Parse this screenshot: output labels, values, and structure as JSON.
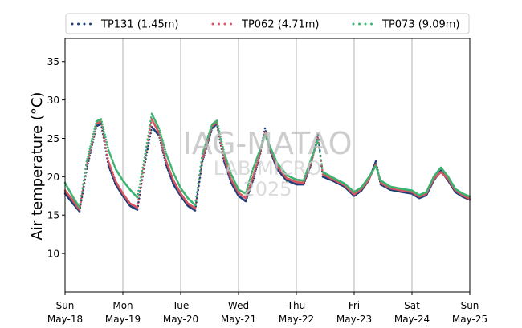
{
  "chart_data": {
    "type": "line",
    "ylabel": "Air temperature (°C)",
    "ylim": [
      5,
      38
    ],
    "yticks": [
      10,
      15,
      20,
      25,
      30,
      35
    ],
    "xlim": [
      "2025-05-18",
      "2025-05-25"
    ],
    "xticks": [
      {
        "day": "Sun",
        "date": "May-18"
      },
      {
        "day": "Mon",
        "date": "May-19"
      },
      {
        "day": "Tue",
        "date": "May-20"
      },
      {
        "day": "Wed",
        "date": "May-21"
      },
      {
        "day": "Thu",
        "date": "May-22"
      },
      {
        "day": "Fri",
        "date": "May-23"
      },
      {
        "day": "Sat",
        "date": "May-24"
      },
      {
        "day": "Sun",
        "date": "May-25"
      }
    ],
    "grid": "vertical at day boundaries",
    "legend_position": "top, above plot",
    "watermark": [
      "IAG-MATAO",
      "LAB MICRO",
      "2025"
    ],
    "series": [
      {
        "name": "TP131 (1.45m)",
        "color": "#1f3f7a",
        "style": "dotted",
        "points": [
          [
            "2025-05-18 00:00",
            17.8
          ],
          [
            "2025-05-18 03:00",
            16.6
          ],
          [
            "2025-05-18 06:00",
            15.5
          ],
          [
            "2025-05-18 09:00",
            21.0
          ],
          [
            "2025-05-18 13:00",
            26.6
          ],
          [
            "2025-05-18 15:00",
            26.9
          ],
          [
            "2025-05-18 18:00",
            21.5
          ],
          [
            "2025-05-18 21:00",
            19.0
          ],
          [
            "2025-05-19 00:00",
            17.5
          ],
          [
            "2025-05-19 03:00",
            16.2
          ],
          [
            "2025-05-19 06:00",
            15.7
          ],
          [
            "2025-05-19 09:00",
            21.5
          ],
          [
            "2025-05-19 12:00",
            26.5
          ],
          [
            "2025-05-19 15:00",
            25.4
          ],
          [
            "2025-05-19 18:00",
            21.5
          ],
          [
            "2025-05-19 21:00",
            19.0
          ],
          [
            "2025-05-20 00:00",
            17.5
          ],
          [
            "2025-05-20 03:00",
            16.2
          ],
          [
            "2025-05-20 06:00",
            15.6
          ],
          [
            "2025-05-20 09:00",
            22.0
          ],
          [
            "2025-05-20 13:00",
            26.3
          ],
          [
            "2025-05-20 15:00",
            26.9
          ],
          [
            "2025-05-20 18:00",
            22.0
          ],
          [
            "2025-05-20 21:00",
            19.2
          ],
          [
            "2025-05-21 00:00",
            17.5
          ],
          [
            "2025-05-21 03:00",
            16.8
          ],
          [
            "2025-05-21 06:00",
            19.5
          ],
          [
            "2025-05-21 09:00",
            23.0
          ],
          [
            "2025-05-21 11:00",
            26.3
          ],
          [
            "2025-05-21 13:00",
            23.5
          ],
          [
            "2025-05-21 16:00",
            21.0
          ],
          [
            "2025-05-21 20:00",
            19.5
          ],
          [
            "2025-05-22 00:00",
            19.0
          ],
          [
            "2025-05-22 03:00",
            19.0
          ],
          [
            "2025-05-22 06:00",
            21.5
          ],
          [
            "2025-05-22 09:00",
            25.5
          ],
          [
            "2025-05-22 11:00",
            20.0
          ],
          [
            "2025-05-22 15:00",
            19.5
          ],
          [
            "2025-05-22 20:00",
            18.7
          ],
          [
            "2025-05-23 00:00",
            17.5
          ],
          [
            "2025-05-23 03:00",
            18.2
          ],
          [
            "2025-05-23 06:00",
            19.5
          ],
          [
            "2025-05-23 09:00",
            22.0
          ],
          [
            "2025-05-23 11:00",
            19.0
          ],
          [
            "2025-05-23 15:00",
            18.3
          ],
          [
            "2025-05-23 20:00",
            18.0
          ],
          [
            "2025-05-24 00:00",
            17.8
          ],
          [
            "2025-05-24 03:00",
            17.2
          ],
          [
            "2025-05-24 06:00",
            17.6
          ],
          [
            "2025-05-24 09:00",
            19.5
          ],
          [
            "2025-05-24 12:00",
            20.8
          ],
          [
            "2025-05-24 15:00",
            19.5
          ],
          [
            "2025-05-24 18:00",
            18.0
          ],
          [
            "2025-05-24 21:00",
            17.4
          ],
          [
            "2025-05-25 00:00",
            17.0
          ]
        ]
      },
      {
        "name": "TP062 (4.71m)",
        "color": "#d9545e",
        "style": "dotted",
        "points": [
          [
            "2025-05-18 00:00",
            18.2
          ],
          [
            "2025-05-18 03:00",
            17.0
          ],
          [
            "2025-05-18 06:00",
            15.7
          ],
          [
            "2025-05-18 09:00",
            21.5
          ],
          [
            "2025-05-18 13:00",
            26.9
          ],
          [
            "2025-05-18 15:00",
            27.2
          ],
          [
            "2025-05-18 18:00",
            22.0
          ],
          [
            "2025-05-18 21:00",
            19.4
          ],
          [
            "2025-05-19 00:00",
            17.8
          ],
          [
            "2025-05-19 03:00",
            16.5
          ],
          [
            "2025-05-19 06:00",
            16.0
          ],
          [
            "2025-05-19 09:00",
            22.0
          ],
          [
            "2025-05-19 12:00",
            27.5
          ],
          [
            "2025-05-19 15:00",
            25.7
          ],
          [
            "2025-05-19 18:00",
            22.0
          ],
          [
            "2025-05-19 21:00",
            19.5
          ],
          [
            "2025-05-20 00:00",
            17.8
          ],
          [
            "2025-05-20 03:00",
            16.5
          ],
          [
            "2025-05-20 06:00",
            15.9
          ],
          [
            "2025-05-20 09:00",
            22.3
          ],
          [
            "2025-05-20 13:00",
            26.6
          ],
          [
            "2025-05-20 15:00",
            27.1
          ],
          [
            "2025-05-20 18:00",
            22.5
          ],
          [
            "2025-05-20 21:00",
            19.6
          ],
          [
            "2025-05-21 00:00",
            17.9
          ],
          [
            "2025-05-21 03:00",
            17.2
          ],
          [
            "2025-05-21 06:00",
            20.0
          ],
          [
            "2025-05-21 09:00",
            23.2
          ],
          [
            "2025-05-21 11:00",
            25.8
          ],
          [
            "2025-05-21 13:00",
            23.8
          ],
          [
            "2025-05-21 16:00",
            21.4
          ],
          [
            "2025-05-21 20:00",
            19.8
          ],
          [
            "2025-05-22 00:00",
            19.3
          ],
          [
            "2025-05-22 03:00",
            19.2
          ],
          [
            "2025-05-22 06:00",
            21.8
          ],
          [
            "2025-05-22 09:00",
            25.0
          ],
          [
            "2025-05-22 11:00",
            20.3
          ],
          [
            "2025-05-22 15:00",
            19.7
          ],
          [
            "2025-05-22 20:00",
            18.9
          ],
          [
            "2025-05-23 00:00",
            17.7
          ],
          [
            "2025-05-23 03:00",
            18.4
          ],
          [
            "2025-05-23 06:00",
            19.6
          ],
          [
            "2025-05-23 09:00",
            21.6
          ],
          [
            "2025-05-23 11:00",
            19.2
          ],
          [
            "2025-05-23 15:00",
            18.5
          ],
          [
            "2025-05-23 20:00",
            18.2
          ],
          [
            "2025-05-24 00:00",
            18.0
          ],
          [
            "2025-05-24 03:00",
            17.4
          ],
          [
            "2025-05-24 06:00",
            17.8
          ],
          [
            "2025-05-24 09:00",
            19.7
          ],
          [
            "2025-05-24 12:00",
            20.6
          ],
          [
            "2025-05-24 15:00",
            19.7
          ],
          [
            "2025-05-24 18:00",
            18.2
          ],
          [
            "2025-05-24 21:00",
            17.6
          ],
          [
            "2025-05-25 00:00",
            17.1
          ]
        ]
      },
      {
        "name": "TP073 (9.09m)",
        "color": "#3cb371",
        "style": "dotted",
        "points": [
          [
            "2025-05-18 00:00",
            19.2
          ],
          [
            "2025-05-18 03:00",
            17.5
          ],
          [
            "2025-05-18 06:00",
            16.0
          ],
          [
            "2025-05-18 09:00",
            22.0
          ],
          [
            "2025-05-18 13:00",
            27.2
          ],
          [
            "2025-05-18 15:00",
            27.5
          ],
          [
            "2025-05-18 18:00",
            23.5
          ],
          [
            "2025-05-18 21:00",
            21.0
          ],
          [
            "2025-05-19 00:00",
            19.5
          ],
          [
            "2025-05-19 03:00",
            18.3
          ],
          [
            "2025-05-19 06:00",
            17.3
          ],
          [
            "2025-05-19 09:00",
            22.5
          ],
          [
            "2025-05-19 12:00",
            28.2
          ],
          [
            "2025-05-19 15:00",
            26.3
          ],
          [
            "2025-05-19 18:00",
            23.0
          ],
          [
            "2025-05-19 21:00",
            20.5
          ],
          [
            "2025-05-20 00:00",
            18.5
          ],
          [
            "2025-05-20 03:00",
            17.2
          ],
          [
            "2025-05-20 06:00",
            16.3
          ],
          [
            "2025-05-20 09:00",
            23.0
          ],
          [
            "2025-05-20 13:00",
            26.8
          ],
          [
            "2025-05-20 15:00",
            27.3
          ],
          [
            "2025-05-20 18:00",
            23.2
          ],
          [
            "2025-05-20 21:00",
            20.3
          ],
          [
            "2025-05-21 00:00",
            18.3
          ],
          [
            "2025-05-21 03:00",
            17.8
          ],
          [
            "2025-05-21 06:00",
            21.0
          ],
          [
            "2025-05-21 09:00",
            23.6
          ],
          [
            "2025-05-21 11:00",
            25.5
          ],
          [
            "2025-05-21 13:00",
            24.0
          ],
          [
            "2025-05-21 16:00",
            21.8
          ],
          [
            "2025-05-21 20:00",
            20.2
          ],
          [
            "2025-05-22 00:00",
            19.6
          ],
          [
            "2025-05-22 03:00",
            19.5
          ],
          [
            "2025-05-22 06:00",
            22.2
          ],
          [
            "2025-05-22 09:00",
            24.8
          ],
          [
            "2025-05-22 11:00",
            20.6
          ],
          [
            "2025-05-22 15:00",
            19.9
          ],
          [
            "2025-05-22 20:00",
            19.1
          ],
          [
            "2025-05-23 00:00",
            18.0
          ],
          [
            "2025-05-23 03:00",
            18.6
          ],
          [
            "2025-05-23 06:00",
            19.9
          ],
          [
            "2025-05-23 09:00",
            21.4
          ],
          [
            "2025-05-23 11:00",
            19.5
          ],
          [
            "2025-05-23 15:00",
            18.7
          ],
          [
            "2025-05-23 20:00",
            18.4
          ],
          [
            "2025-05-24 00:00",
            18.2
          ],
          [
            "2025-05-24 03:00",
            17.6
          ],
          [
            "2025-05-24 06:00",
            18.0
          ],
          [
            "2025-05-24 09:00",
            20.0
          ],
          [
            "2025-05-24 12:00",
            21.2
          ],
          [
            "2025-05-24 15:00",
            20.0
          ],
          [
            "2025-05-24 18:00",
            18.4
          ],
          [
            "2025-05-24 21:00",
            17.8
          ],
          [
            "2025-05-25 00:00",
            17.4
          ]
        ]
      }
    ]
  }
}
